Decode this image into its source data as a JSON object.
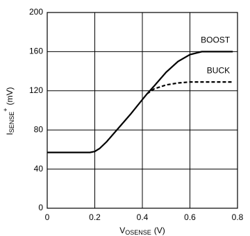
{
  "chart_data": {
    "type": "line",
    "xlabel": {
      "main": "V",
      "sub": "OSENSE",
      "unit": "(V)"
    },
    "ylabel": {
      "main": "I",
      "sub": "SENSE",
      "sup": "+",
      "unit": "(mV)"
    },
    "x": [
      0,
      0.1,
      0.18,
      0.2,
      0.22,
      0.25,
      0.3,
      0.35,
      0.4,
      0.42,
      0.45,
      0.5,
      0.55,
      0.6,
      0.65,
      0.7,
      0.78
    ],
    "series": [
      {
        "name": "BOOST",
        "color": "#000000",
        "dash": false,
        "values": [
          57,
          57,
          57,
          58,
          61,
          68,
          82,
          96,
          111,
          117,
          125,
          139,
          150,
          157,
          160,
          160,
          160
        ]
      },
      {
        "name": "BUCK",
        "color": "#000000",
        "dash": true,
        "values": [
          null,
          null,
          null,
          null,
          null,
          null,
          null,
          null,
          null,
          117,
          122,
          126,
          128,
          129,
          129,
          129,
          129
        ]
      }
    ],
    "xlim": [
      0,
      0.8
    ],
    "xticks": [
      0,
      0.2,
      0.4,
      0.6,
      0.8
    ],
    "ylim": [
      0,
      200
    ],
    "yticks": [
      0,
      40,
      80,
      120,
      160,
      200
    ],
    "grid": true
  }
}
